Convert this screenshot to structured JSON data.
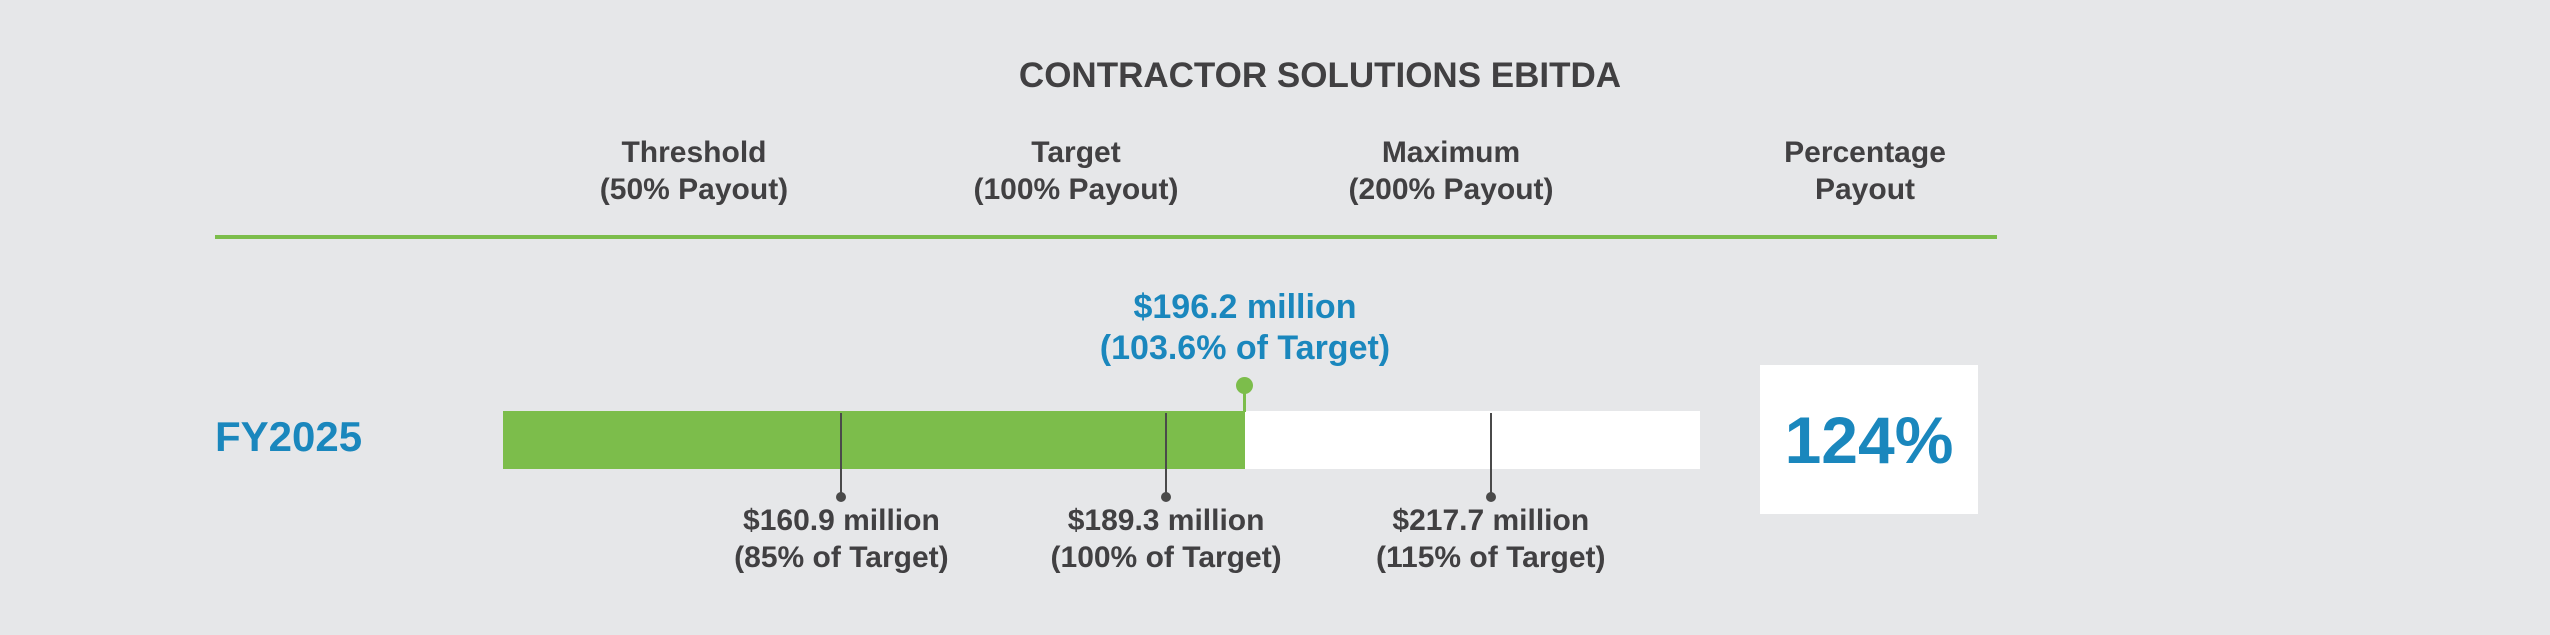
{
  "title": "CONTRACTOR SOLUTIONS EBITDA",
  "headers": {
    "threshold": {
      "line1": "Threshold",
      "line2": "(50% Payout)"
    },
    "target": {
      "line1": "Target",
      "line2": "(100% Payout)"
    },
    "maximum": {
      "line1": "Maximum",
      "line2": "(200% Payout)"
    },
    "payout": {
      "line1": "Percentage",
      "line2": "Payout"
    }
  },
  "colors": {
    "accent_green": "#7cbd4b",
    "accent_blue": "#1a87bd",
    "text_dark": "#414042",
    "background": "#e6e7e9"
  },
  "chart_data": {
    "type": "bar",
    "title": "CONTRACTOR SOLUTIONS EBITDA",
    "categories": [
      "FY2025"
    ],
    "xlim": [
      131.3,
      236.0
    ],
    "unit": "$ million",
    "actual": {
      "value": 196.2,
      "label_line1": "$196.2 million",
      "label_line2": "(103.6% of Target)"
    },
    "ticks": [
      {
        "value": 160.9,
        "line1": "$160.9 million",
        "line2": "(85% of Target)"
      },
      {
        "value": 189.3,
        "line1": "$189.3 million",
        "line2": "(100% of Target)"
      },
      {
        "value": 217.7,
        "line1": "$217.7 million",
        "line2": "(115% of Target)"
      }
    ],
    "payout_percentage": "124%"
  }
}
